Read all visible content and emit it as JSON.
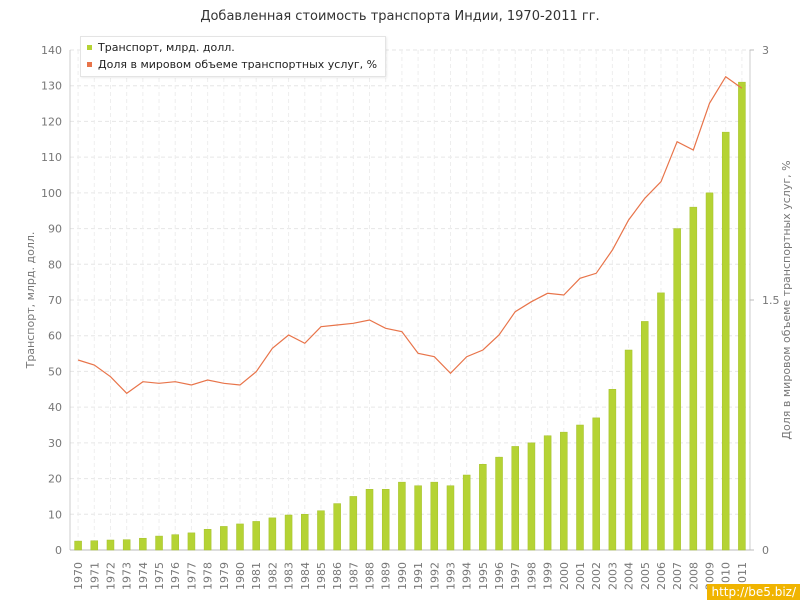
{
  "chart_data": {
    "type": "bar",
    "title": "Добавленная стоимость транспорта Индии, 1970-2011 гг.",
    "ylabel": "Транспорт, млрд. долл.",
    "y2label": "Доля в мировом объеме транспортных услуг, %",
    "ylim": [
      0,
      140
    ],
    "y2lim": [
      0,
      3
    ],
    "yticks": [
      0,
      10,
      20,
      30,
      40,
      50,
      60,
      70,
      80,
      90,
      100,
      110,
      120,
      130,
      140
    ],
    "y2ticks": [
      "0",
      "1.5",
      "3"
    ],
    "grid": true,
    "legend_position": "top-left",
    "categories": [
      "1970",
      "1971",
      "1972",
      "1973",
      "1974",
      "1975",
      "1976",
      "1977",
      "1978",
      "1979",
      "1980",
      "1981",
      "1982",
      "1983",
      "1984",
      "1985",
      "1986",
      "1987",
      "1988",
      "1989",
      "1990",
      "1991",
      "1992",
      "1993",
      "1994",
      "1995",
      "1996",
      "1997",
      "1998",
      "1999",
      "2000",
      "2001",
      "2002",
      "2003",
      "2004",
      "2005",
      "2006",
      "2007",
      "2008",
      "2009",
      "2010",
      "2011"
    ],
    "series": [
      {
        "name": "Транспорт, млрд. долл.",
        "type": "bar",
        "axis": "left",
        "color": "#b5d334",
        "values": [
          2.5,
          2.6,
          2.8,
          2.9,
          3.3,
          3.9,
          4.3,
          4.8,
          5.8,
          6.6,
          7.3,
          8.0,
          9.0,
          9.8,
          10.0,
          11.0,
          13.0,
          15.0,
          17.0,
          17.0,
          19.0,
          18.0,
          19.0,
          18.0,
          21.0,
          24.0,
          26.0,
          29.0,
          30.0,
          32.0,
          33.0,
          35.0,
          37.0,
          45.0,
          56.0,
          64.0,
          72.0,
          90.0,
          96.0,
          100.0,
          117.0,
          131.0
        ]
      },
      {
        "name": "Доля в мировом объеме транспортных услуг, %",
        "type": "line",
        "axis": "right",
        "color": "#e8744a",
        "values": [
          1.14,
          1.11,
          1.04,
          0.94,
          1.01,
          1.0,
          1.01,
          0.99,
          1.02,
          1.0,
          0.99,
          1.07,
          1.21,
          1.29,
          1.24,
          1.34,
          1.35,
          1.36,
          1.38,
          1.33,
          1.31,
          1.18,
          1.16,
          1.06,
          1.16,
          1.2,
          1.29,
          1.43,
          1.49,
          1.54,
          1.53,
          1.63,
          1.66,
          1.8,
          1.98,
          2.11,
          2.21,
          2.45,
          2.4,
          2.68,
          2.84,
          2.77
        ]
      }
    ]
  },
  "watermark": "http://be5.biz/"
}
